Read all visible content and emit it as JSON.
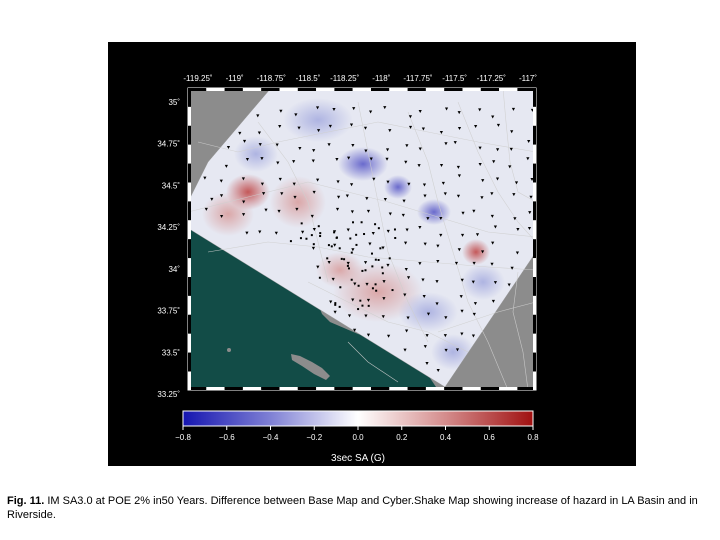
{
  "map": {
    "lon_ticks": [
      "-119.25˚",
      "-119˚",
      "-118.75˚",
      "-118.5˚",
      "-118.25˚",
      "-118˚",
      "-117.75˚",
      "-117.5˚",
      "-117.25˚",
      "-117˚"
    ],
    "lat_ticks": [
      "35˚",
      "34.75˚",
      "34.5˚",
      "34.25˚",
      "34˚",
      "33.75˚",
      "33.5˚",
      "33.25˚"
    ],
    "colors": {
      "land": "#8c8c8c",
      "ocean": "#124c47",
      "negative": "#1515b0",
      "neutral": "#ffffff",
      "positive": "#a01010"
    }
  },
  "colorbar": {
    "ticks": [
      "−0.8",
      "−0.6",
      "−0.4",
      "−0.2",
      "0.0",
      "0.2",
      "0.4",
      "0.6",
      "0.8"
    ],
    "label": "3sec SA (G)"
  },
  "caption": {
    "label": "Fig. 11.",
    "text": " IM SA3.0 at POE 2% in50 Years.  Difference between Base Map and Cyber.Shake Map showing increase of hazard in LA Basin and in Riverside."
  }
}
